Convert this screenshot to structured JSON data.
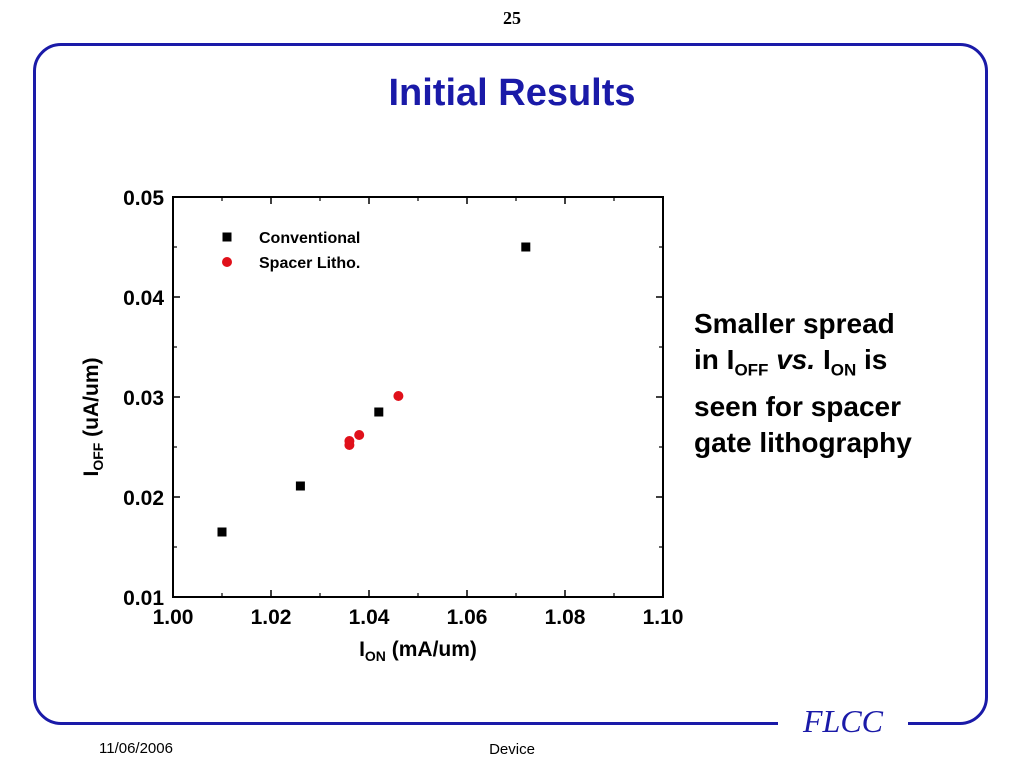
{
  "page_number": "25",
  "title": "Initial Results",
  "side_text": {
    "line1": "Smaller spread",
    "line2_pre": "in I",
    "line2_sub1": "OFF",
    "line2_vs": "vs.",
    "line2_i": "I",
    "line2_sub2": "ON",
    "line2_post": "is",
    "line3": "seen for spacer",
    "line4": "gate lithography"
  },
  "logo": "FLCC",
  "footer": {
    "date": "11/06/2006",
    "center": "Device"
  },
  "colors": {
    "accent": "#1a1aa8",
    "conventional": "#000000",
    "spacer": "#e0101a"
  },
  "chart_data": {
    "type": "scatter",
    "title": "",
    "xlabel": {
      "main": "I",
      "sub": "ON",
      "rest": " (mA/um)"
    },
    "ylabel": {
      "main": "I",
      "sub": "OFF",
      "rest": " (uA/um)"
    },
    "xlim": [
      1.0,
      1.1
    ],
    "ylim": [
      0.01,
      0.05
    ],
    "xticks": [
      "1.00",
      "1.02",
      "1.04",
      "1.06",
      "1.08",
      "1.10"
    ],
    "yticks": [
      "0.01",
      "0.02",
      "0.03",
      "0.04",
      "0.05"
    ],
    "grid": false,
    "legend_position": "top-left",
    "series": [
      {
        "name": "Conventional",
        "marker": "square",
        "color": "#000000",
        "points": [
          [
            1.01,
            0.0165
          ],
          [
            1.026,
            0.0211
          ],
          [
            1.042,
            0.0285
          ],
          [
            1.072,
            0.045
          ]
        ]
      },
      {
        "name": "Spacer Litho.",
        "marker": "circle",
        "color": "#e0101a",
        "points": [
          [
            1.036,
            0.0252
          ],
          [
            1.036,
            0.0256
          ],
          [
            1.038,
            0.0262
          ],
          [
            1.046,
            0.0301
          ]
        ]
      }
    ]
  }
}
